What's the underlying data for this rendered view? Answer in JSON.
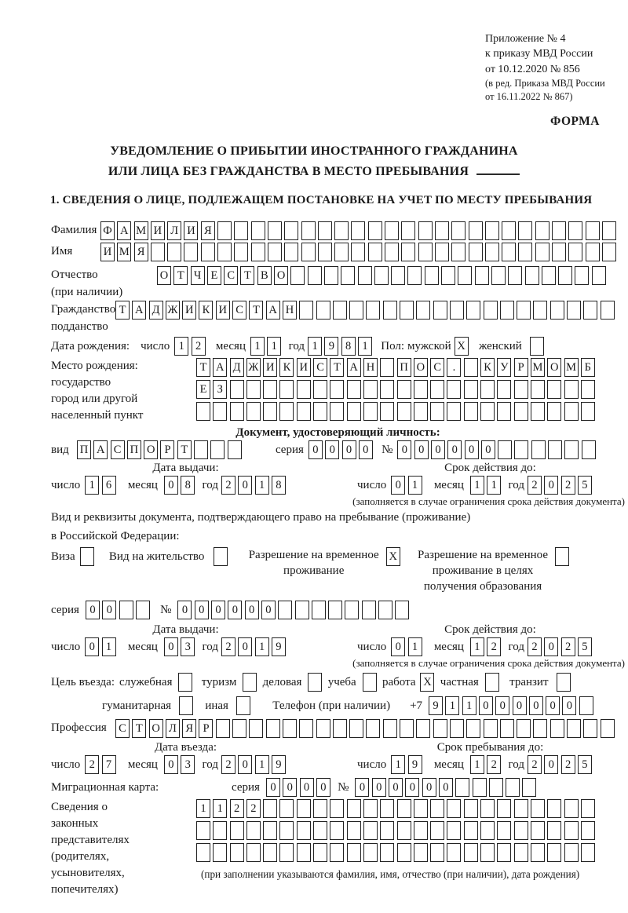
{
  "page": {
    "appendix": {
      "lines": [
        "Приложение № 4",
        "к приказу МВД России",
        "от 10.12.2020 № 856"
      ],
      "amendment": [
        "(в ред. Приказа МВД России",
        "от 16.11.2022 № 867)"
      ]
    },
    "forma": "ФОРМА",
    "title1": "УВЕДОМЛЕНИЕ О ПРИБЫТИИ ИНОСТРАННОГО ГРАЖДАНИНА",
    "title2": "ИЛИ ЛИЦА БЕЗ ГРАЖДАНСТВА В МЕСТО ПРЕБЫВАНИЯ",
    "section1": "1. СВЕДЕНИЯ О ЛИЦЕ, ПОДЛЕЖАЩЕМ ПОСТАНОВКЕ НА УЧЕТ ПО МЕСТУ ПРЕБЫВАНИЯ"
  },
  "labels": {
    "day": "число",
    "month": "месяц",
    "year": "год",
    "series": "серия",
    "number": "№",
    "issue_date": "Дата выдачи:",
    "valid_until": "Срок действия до:",
    "entry_date": "Дата въезда:",
    "stay_until": "Срок пребывания до:",
    "limit_note": "(заполняется в случае ограничения срока действия документа)"
  },
  "person": {
    "surname": {
      "label": "Фамилия",
      "boxes": {
        "text": "ФАМИЛИЯ",
        "count": 31
      }
    },
    "given_name": {
      "label": "Имя",
      "boxes": {
        "text": "ИМЯ",
        "count": 31
      }
    },
    "patronymic": {
      "label": "Отчество",
      "label2": "(при наличии)",
      "boxes": {
        "text": "ОТЧЕСТВО",
        "count": 27
      }
    },
    "citizenship": {
      "label": "Гражданство,",
      "label2": "подданство",
      "boxes": {
        "text": "ТАДЖИКИСТАН",
        "count": 30
      }
    },
    "birth_date": {
      "label": "Дата рождения:",
      "day": "12",
      "month": "11",
      "year": "1981"
    },
    "sex": {
      "label": "Пол:",
      "male": "мужской",
      "male_mark": "X",
      "female": "женский",
      "female_mark": ""
    },
    "birth_place": {
      "label_lines": [
        "Место рождения:",
        "государство",
        "город или другой",
        "населенный пункт"
      ],
      "rows": [
        {
          "text": "ТАДЖИКИСТАН ПОС. КУРМОМБ",
          "count": 24
        },
        {
          "text": "ЕЗ",
          "count": 24
        },
        {
          "text": "",
          "count": 24
        }
      ]
    }
  },
  "identity_doc": {
    "heading": "Документ, удостоверяющий личность:",
    "kind_label": "вид",
    "kind": {
      "text": "ПАСПОРТ",
      "count": 10
    },
    "series": {
      "text": "0000",
      "count": 4
    },
    "number": {
      "text": "000000",
      "count": 12
    },
    "issue": {
      "day": "16",
      "month": "08",
      "year": "2018"
    },
    "valid": {
      "day": "01",
      "month": "11",
      "year": "2025"
    }
  },
  "stay_doc": {
    "intro1": "Вид и реквизиты документа, подтверждающего право на пребывание (проживание)",
    "intro2": "в Российской Федерации:",
    "options": [
      {
        "label": "Виза",
        "mark": ""
      },
      {
        "label": "Вид на жительство",
        "mark": ""
      },
      {
        "label": "Разрешение на временное проживание",
        "mark": "X"
      },
      {
        "label": "Разрешение на временное проживание в целях получения образования",
        "mark": ""
      }
    ],
    "series": {
      "text": "00",
      "count": 4
    },
    "number": {
      "text": "000000",
      "count": 14
    },
    "issue": {
      "day": "01",
      "month": "03",
      "year": "2019"
    },
    "valid": {
      "day": "01",
      "month": "12",
      "year": "2025"
    }
  },
  "visit": {
    "purpose_label": "Цель въезда:",
    "options_line1": [
      {
        "label": "служебная",
        "mark": ""
      },
      {
        "label": "туризм",
        "mark": ""
      },
      {
        "label": "деловая",
        "mark": ""
      },
      {
        "label": "учеба",
        "mark": ""
      },
      {
        "label": "работа",
        "mark": "X"
      },
      {
        "label": "частная",
        "mark": ""
      },
      {
        "label": "транзит",
        "mark": ""
      }
    ],
    "options_line2": [
      {
        "label": "гуманитарная",
        "mark": ""
      },
      {
        "label": "иная",
        "mark": ""
      }
    ],
    "phone_label": "Телефон (при наличии)",
    "phone_prefix": "+7",
    "phone": {
      "text": "911000000",
      "count": 10
    },
    "profession_label": "Профессия",
    "profession": {
      "text": "СТОЛЯР",
      "count": 30
    },
    "entry": {
      "day": "27",
      "month": "03",
      "year": "2019"
    },
    "stay": {
      "day": "19",
      "month": "12",
      "year": "2025"
    }
  },
  "migration_card": {
    "label": "Миграционная карта:",
    "series": {
      "text": "0000",
      "count": 4
    },
    "number": {
      "text": "000000",
      "count": 11
    }
  },
  "guardians": {
    "label_lines": [
      "Сведения о",
      "законных",
      "представителях",
      "(родителях,",
      "усыновителях,",
      "попечителях)"
    ],
    "rows": [
      {
        "text": "1122",
        "count": 24
      },
      {
        "text": "",
        "count": 24
      },
      {
        "text": "",
        "count": 24
      }
    ],
    "note": "(при заполнении указываются фамилия, имя, отчество (при наличии), дата рождения)"
  }
}
